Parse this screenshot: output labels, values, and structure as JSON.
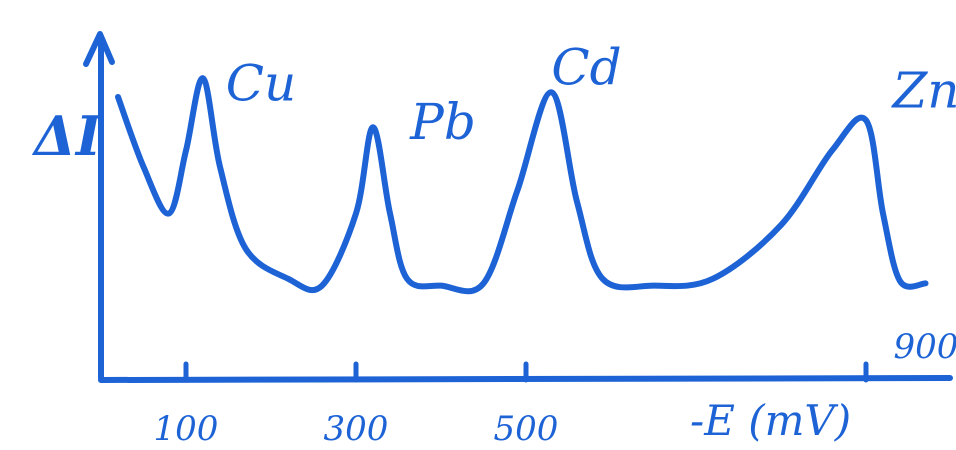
{
  "chart_data": {
    "type": "line",
    "title": "",
    "xlabel": "-E (mV)",
    "ylabel": "ΔI",
    "color": "#1d63d6",
    "x_ticks": [
      {
        "value": 100,
        "label": "100"
      },
      {
        "value": 300,
        "label": "300"
      },
      {
        "value": 500,
        "label": "500"
      },
      {
        "value": 900,
        "label": "900"
      }
    ],
    "peaks": [
      {
        "name": "Cu",
        "x": 120
      },
      {
        "name": "Pb",
        "x": 320
      },
      {
        "name": "Cd",
        "x": 530
      },
      {
        "name": "Zn",
        "x": 900
      }
    ],
    "series": [
      {
        "x": [
          20,
          50,
          80,
          100,
          120,
          140,
          170,
          220,
          260,
          300,
          320,
          340,
          360,
          400,
          450,
          490,
          530,
          560,
          590,
          650,
          720,
          800,
          860,
          900,
          920,
          940,
          970
        ],
        "values": [
          0.85,
          0.55,
          0.35,
          0.62,
          0.93,
          0.55,
          0.2,
          0.07,
          0.04,
          0.35,
          0.72,
          0.35,
          0.07,
          0.04,
          0.05,
          0.45,
          0.87,
          0.4,
          0.07,
          0.04,
          0.07,
          0.3,
          0.62,
          0.75,
          0.35,
          0.06,
          0.05
        ]
      }
    ],
    "ylim": [
      0,
      1
    ],
    "grid": false,
    "legend": "none"
  }
}
